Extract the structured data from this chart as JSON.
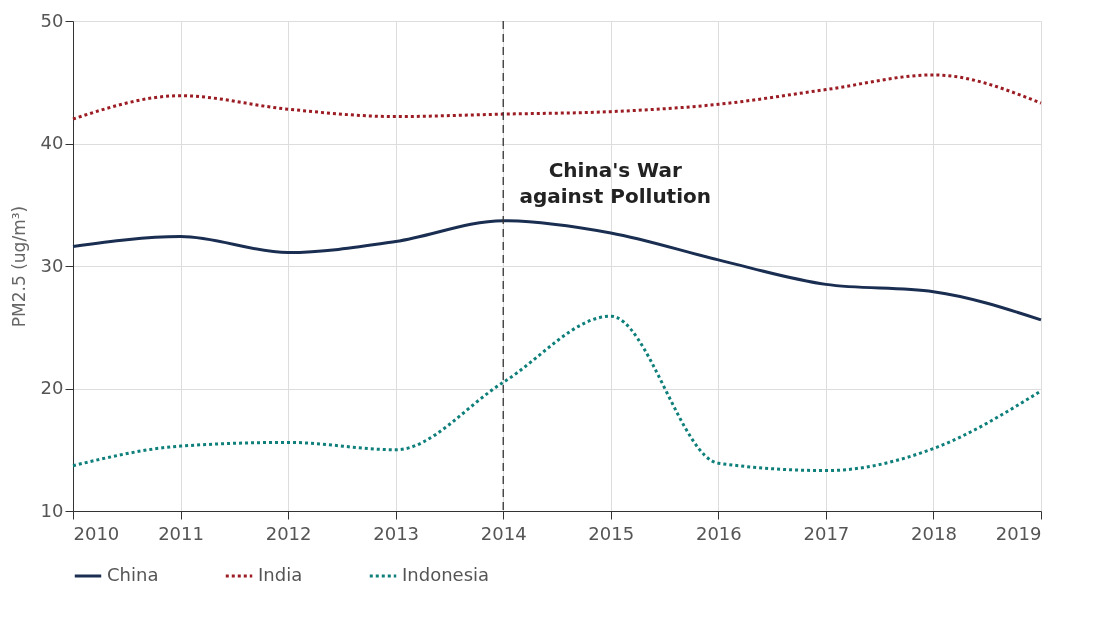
{
  "chart_data": {
    "type": "line",
    "ylabel": "PM2.5 (ug/m³)",
    "x": [
      2010,
      2011,
      2012,
      2013,
      2014,
      2015,
      2016,
      2017,
      2018,
      2019
    ],
    "xlim": [
      2010,
      2019
    ],
    "xticks": [
      2010,
      2011,
      2012,
      2013,
      2014,
      2015,
      2016,
      2017,
      2018,
      2019
    ],
    "ylim": [
      10,
      50
    ],
    "yticks": [
      10,
      20,
      30,
      40,
      50
    ],
    "grid": true,
    "legend": "bottom",
    "series": [
      {
        "name": "China",
        "color": "#1a2e52",
        "line_style": "solid",
        "values": [
          31.6,
          32.4,
          31.1,
          32.0,
          33.7,
          32.7,
          30.5,
          28.5,
          27.9,
          25.6
        ]
      },
      {
        "name": "India",
        "color": "#9b1c23",
        "line_style": "dotted",
        "values": [
          42.0,
          43.9,
          42.8,
          42.2,
          42.4,
          42.6,
          43.2,
          44.4,
          45.6,
          43.3
        ]
      },
      {
        "name": "Indonesia",
        "color": "#0e7f7a",
        "line_style": "dotted",
        "values": [
          13.7,
          15.3,
          15.6,
          15.0,
          20.5,
          25.9,
          13.9,
          13.3,
          15.1,
          19.8
        ]
      }
    ],
    "ref_lines": [
      {
        "axis": "x",
        "value": 2014,
        "label": "China's War against Pollution",
        "color": "#333333",
        "line_style": "dashed"
      }
    ]
  }
}
